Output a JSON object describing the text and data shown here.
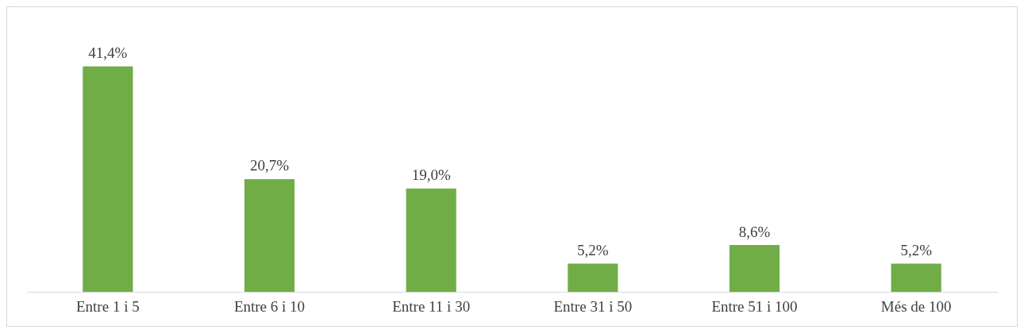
{
  "chart_data": {
    "type": "bar",
    "categories": [
      "Entre 1 i 5",
      "Entre 6 i 10",
      "Entre 11 i 30",
      "Entre 31 i 50",
      "Entre 51 i 100",
      "Més de 100"
    ],
    "values": [
      41.4,
      20.7,
      19.0,
      5.2,
      8.6,
      5.2
    ],
    "value_labels": [
      "41,4%",
      "20,7%",
      "19,0%",
      "5,2%",
      "8,6%",
      "5,2%"
    ],
    "color": "#70ad47",
    "grid": false,
    "legend": false
  }
}
